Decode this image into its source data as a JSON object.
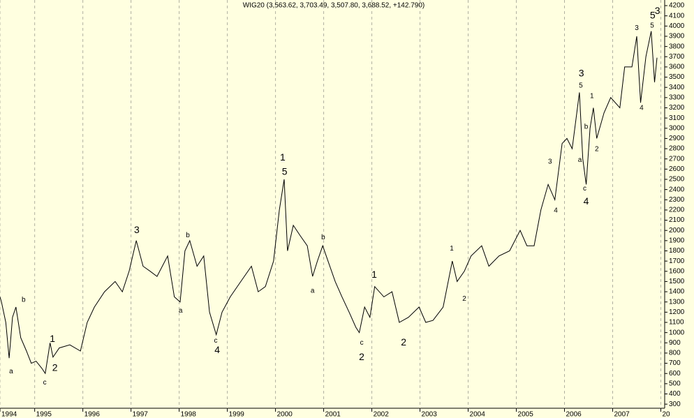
{
  "chart_data": {
    "type": "line",
    "title": "WIG20 (3,563.62, 3,703.49, 3,507.80, 3,688.52, +142.790)",
    "x": [
      1994.28,
      1994.31,
      1994.4,
      1994.47,
      1994.54,
      1994.61,
      1994.71,
      1994.83,
      1994.93,
      1995.03,
      1995.15,
      1995.22,
      1995.32,
      1995.38,
      1995.51,
      1995.73,
      1995.95,
      1996.09,
      1996.24,
      1996.45,
      1996.67,
      1996.82,
      1996.96,
      1997.11,
      1997.25,
      1997.4,
      1997.54,
      1997.76,
      1997.9,
      1998.02,
      1998.12,
      1998.22,
      1998.37,
      1998.51,
      1998.63,
      1998.77,
      1998.89,
      1999.06,
      1999.28,
      1999.5,
      1999.64,
      1999.79,
      1999.96,
      2000.08,
      2000.18,
      2000.25,
      2000.37,
      2000.51,
      2000.66,
      2000.77,
      2000.87,
      2000.98,
      2001.09,
      2001.24,
      2001.38,
      2001.53,
      2001.67,
      2001.74,
      2001.85,
      2001.96,
      2002.06,
      2002.25,
      2002.42,
      2002.57,
      2002.76,
      2002.98,
      2003.12,
      2003.27,
      2003.48,
      2003.67,
      2003.77,
      2003.92,
      2004.06,
      2004.28,
      2004.43,
      2004.64,
      2004.86,
      2005.08,
      2005.22,
      2005.37,
      2005.51,
      2005.66,
      2005.8,
      2005.95,
      2006.05,
      2006.16,
      2006.31,
      2006.38,
      2006.45,
      2006.53,
      2006.6,
      2006.67,
      2006.82,
      2006.96,
      2007.15,
      2007.25,
      2007.4,
      2007.5,
      2007.58,
      2007.69,
      2007.8,
      2007.87,
      2007.92
    ],
    "series": [
      {
        "name": "WIG20",
        "color": "#000000",
        "values": [
          1350,
          1300,
          1100,
          750,
          1150,
          1250,
          950,
          820,
          700,
          720,
          650,
          600,
          900,
          760,
          850,
          880,
          820,
          1100,
          1250,
          1400,
          1500,
          1400,
          1600,
          1900,
          1650,
          1600,
          1550,
          1750,
          1350,
          1300,
          1800,
          1900,
          1650,
          1750,
          1200,
          980,
          1200,
          1350,
          1500,
          1650,
          1400,
          1450,
          1700,
          2200,
          2500,
          1800,
          2050,
          1950,
          1850,
          1550,
          1700,
          1850,
          1700,
          1500,
          1350,
          1200,
          1050,
          1000,
          1250,
          1150,
          1450,
          1350,
          1400,
          1100,
          1150,
          1250,
          1100,
          1120,
          1250,
          1700,
          1500,
          1600,
          1750,
          1850,
          1650,
          1750,
          1800,
          2000,
          1850,
          1850,
          2200,
          2450,
          2300,
          2850,
          2900,
          2800,
          3350,
          2700,
          2450,
          3000,
          3200,
          2900,
          3150,
          3300,
          3200,
          3600,
          3600,
          3900,
          3250,
          3700,
          3950,
          3450,
          3690
        ]
      }
    ],
    "xlim": [
      1994.28,
      2008.08
    ],
    "xticks": [
      {
        "value": 1994.28,
        "label": "1994"
      },
      1995,
      1996,
      1997,
      1998,
      1999,
      2000,
      2001,
      2002,
      2003,
      2004,
      2005,
      2006,
      2007,
      {
        "value": 2008,
        "label": "20"
      }
    ],
    "ylim": [
      260,
      4255
    ],
    "yticks": [
      300,
      400,
      500,
      600,
      700,
      800,
      900,
      1000,
      1100,
      1200,
      1300,
      1400,
      1500,
      1600,
      1700,
      1800,
      1900,
      2000,
      2100,
      2200,
      2300,
      2400,
      2500,
      2600,
      2700,
      2800,
      2900,
      3000,
      3100,
      3200,
      3300,
      3400,
      3500,
      3600,
      3700,
      3800,
      3900,
      4000,
      4100,
      4200
    ],
    "grid": true,
    "annotations": [
      {
        "text": "a",
        "x": 1994.51,
        "y": 620,
        "color": "#0000cc"
      },
      {
        "text": "b",
        "x": 1994.77,
        "y": 1320,
        "color": "#0000cc"
      },
      {
        "text": "c",
        "x": 1995.21,
        "y": 510,
        "color": "#0000cc"
      },
      {
        "text": "1",
        "x": 1995.37,
        "y": 935,
        "color": "#0000ff"
      },
      {
        "text": "2",
        "x": 1995.42,
        "y": 650,
        "color": "#0000ff"
      },
      {
        "text": "3",
        "x": 1997.12,
        "y": 2000,
        "color": "#0000ff"
      },
      {
        "text": "a",
        "x": 1998.03,
        "y": 1215,
        "color": "#0000cc"
      },
      {
        "text": "b",
        "x": 1998.18,
        "y": 1950,
        "color": "#0000cc"
      },
      {
        "text": "c",
        "x": 1998.76,
        "y": 920,
        "color": "#0000cc"
      },
      {
        "text": "4",
        "x": 1998.79,
        "y": 825,
        "color": "#0000ff"
      },
      {
        "text": "1",
        "x": 2000.15,
        "y": 2710,
        "color": "#e00000"
      },
      {
        "text": "5",
        "x": 2000.19,
        "y": 2570,
        "color": "#0000ff"
      },
      {
        "text": "a",
        "x": 2000.77,
        "y": 1407,
        "color": "#0000cc"
      },
      {
        "text": "b",
        "x": 2000.99,
        "y": 1932,
        "color": "#0000cc"
      },
      {
        "text": "c",
        "x": 2001.79,
        "y": 901,
        "color": "#0000cc"
      },
      {
        "text": "2",
        "x": 2001.79,
        "y": 758,
        "color": "#e00000"
      },
      {
        "text": "1",
        "x": 2002.05,
        "y": 1564,
        "color": "#0000ff"
      },
      {
        "text": "2",
        "x": 2002.66,
        "y": 901,
        "color": "#0000ff"
      },
      {
        "text": "1",
        "x": 2003.66,
        "y": 1823,
        "color": "#008800"
      },
      {
        "text": "2",
        "x": 2003.92,
        "y": 1331,
        "color": "#008800"
      },
      {
        "text": "3",
        "x": 2005.7,
        "y": 2670,
        "color": "#008800"
      },
      {
        "text": "4",
        "x": 2005.82,
        "y": 2192,
        "color": "#008800"
      },
      {
        "text": "3",
        "x": 2006.35,
        "y": 3531,
        "color": "#0000ff"
      },
      {
        "text": "5",
        "x": 2006.34,
        "y": 3415,
        "color": "#008800"
      },
      {
        "text": "1",
        "x": 2006.57,
        "y": 3312,
        "color": "#008800"
      },
      {
        "text": "b",
        "x": 2006.45,
        "y": 3012,
        "color": "#0000cc"
      },
      {
        "text": "a",
        "x": 2006.32,
        "y": 2690,
        "color": "#0000cc"
      },
      {
        "text": "2",
        "x": 2006.67,
        "y": 2793,
        "color": "#008800"
      },
      {
        "text": "c",
        "x": 2006.42,
        "y": 2410,
        "color": "#0000cc"
      },
      {
        "text": "4",
        "x": 2006.45,
        "y": 2281,
        "color": "#0000ff"
      },
      {
        "text": "3",
        "x": 2007.5,
        "y": 3981,
        "color": "#008800"
      },
      {
        "text": "5",
        "x": 2007.82,
        "y": 4002,
        "color": "#008800"
      },
      {
        "text": "4",
        "x": 2007.6,
        "y": 3196,
        "color": "#008800"
      },
      {
        "text": "5",
        "x": 2007.83,
        "y": 4098,
        "color": "#0000ff"
      },
      {
        "text": "3",
        "x": 2007.93,
        "y": 4145,
        "color": "#e00000"
      }
    ]
  }
}
